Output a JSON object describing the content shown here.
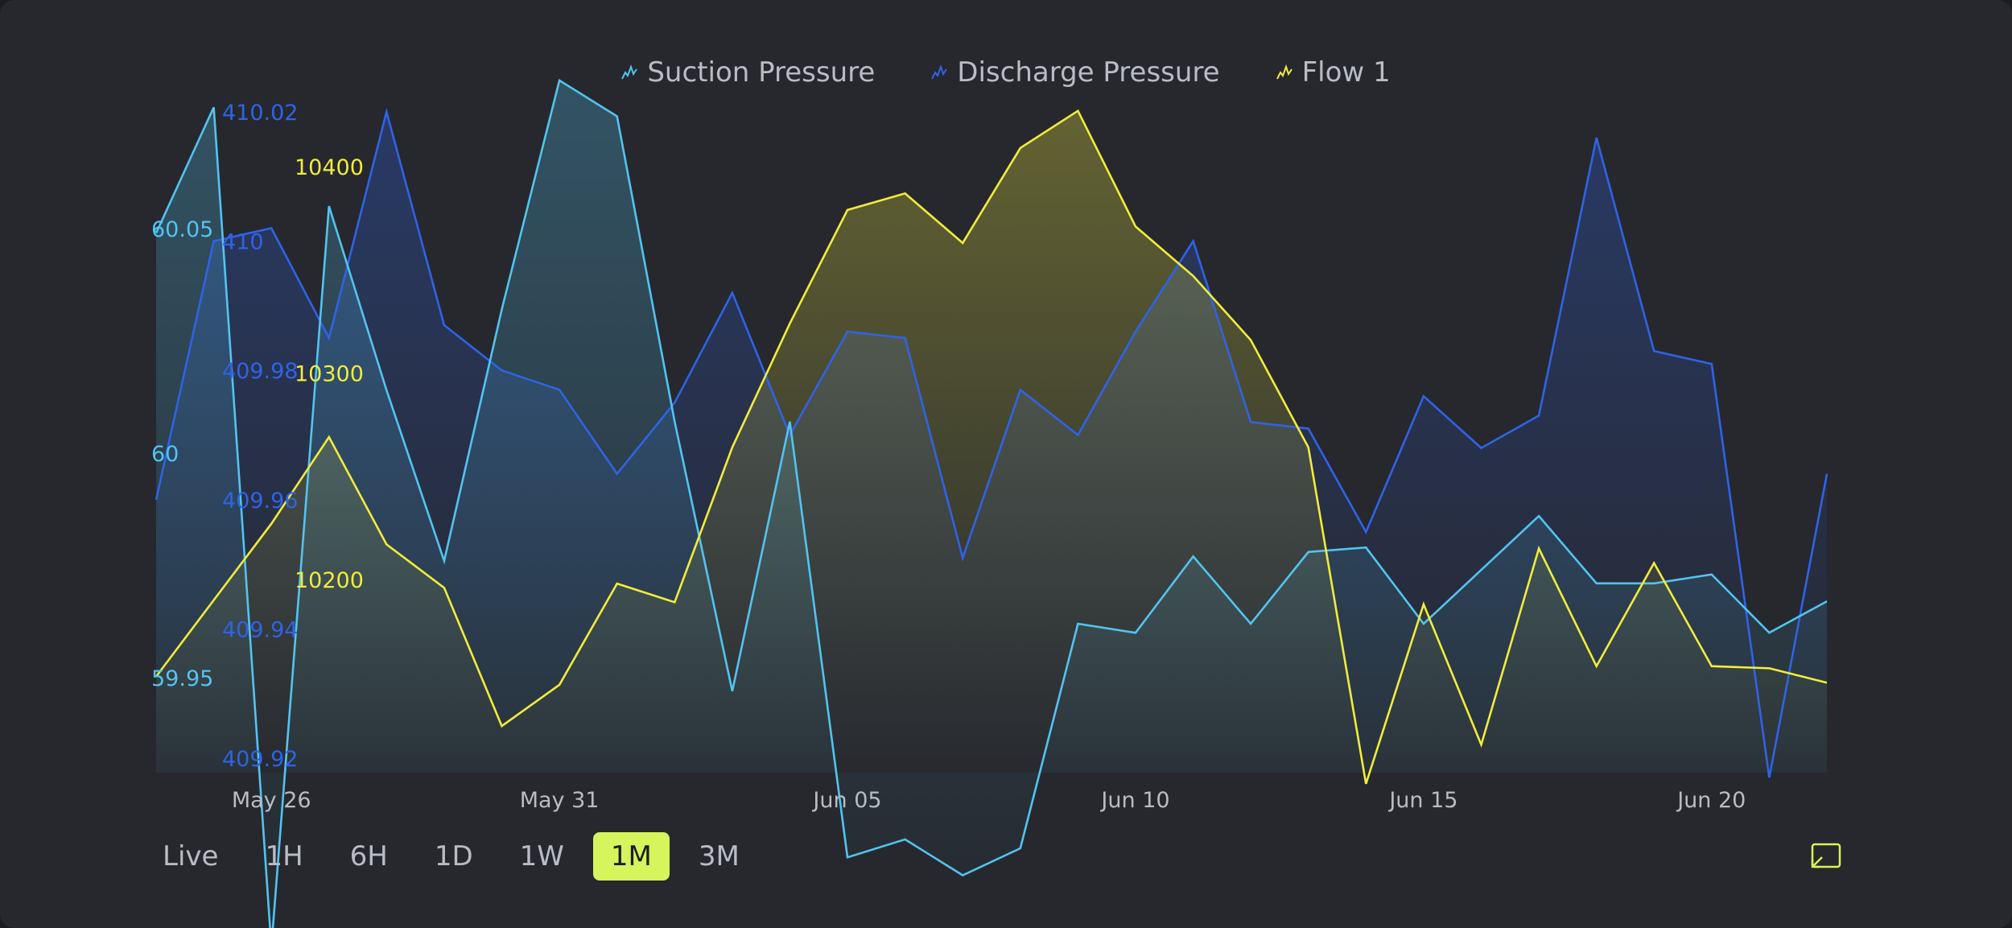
{
  "legend": [
    {
      "name": "Suction Pressure",
      "color": "#52c4f0"
    },
    {
      "name": "Discharge Pressure",
      "color": "#2f63e6"
    },
    {
      "name": "Flow 1",
      "color": "#f2ec3c"
    }
  ],
  "ranges": [
    "Live",
    "1H",
    "6H",
    "1D",
    "1W",
    "1M",
    "3M"
  ],
  "active_range": "1M",
  "colors": {
    "background": "#26282e",
    "suction": "#52c4f0",
    "discharge": "#2f63e6",
    "flow": "#f2ec3c",
    "active": "#d6f45b",
    "text": "#b9bcc4"
  },
  "chart_data": {
    "type": "area",
    "x": [
      "2024-05-24",
      "2024-05-25",
      "2024-05-26",
      "2024-05-27",
      "2024-05-28",
      "2024-05-29",
      "2024-05-30",
      "2024-05-31",
      "2024-06-01",
      "2024-06-02",
      "2024-06-03",
      "2024-06-04",
      "2024-06-05",
      "2024-06-06",
      "2024-06-07",
      "2024-06-08",
      "2024-06-09",
      "2024-06-10",
      "2024-06-11",
      "2024-06-12",
      "2024-06-13",
      "2024-06-14",
      "2024-06-15",
      "2024-06-16",
      "2024-06-17",
      "2024-06-18",
      "2024-06-19",
      "2024-06-20",
      "2024-06-21",
      "2024-06-22"
    ],
    "xticks": [
      "May 26",
      "May 31",
      "Jun 05",
      "Jun 10",
      "Jun 15",
      "Jun 20"
    ],
    "xtick_dates": [
      "2024-05-26",
      "2024-05-31",
      "2024-06-05",
      "2024-06-10",
      "2024-06-15",
      "2024-06-20"
    ],
    "grid": false,
    "legend_position": "top-center",
    "series": [
      {
        "name": "Suction Pressure",
        "axis_ticks": [
          "60.05",
          "60",
          "59.95"
        ],
        "axis_tick_values": [
          60.05,
          60,
          59.95
        ],
        "values": [
          60.049,
          60.077,
          59.89,
          60.055,
          60.014,
          59.976,
          60.032,
          60.083,
          60.075,
          60.007,
          59.947,
          60.007,
          59.91,
          59.914,
          59.906,
          59.912,
          59.962,
          59.96,
          59.977,
          59.962,
          59.978,
          59.979,
          59.962,
          59.974,
          59.986,
          59.971,
          59.971,
          59.973,
          59.96,
          59.967
        ]
      },
      {
        "name": "Discharge Pressure",
        "axis_ticks": [
          "410.02",
          "410",
          "409.98",
          "409.96",
          "409.94",
          "409.92"
        ],
        "axis_tick_values": [
          410.02,
          410,
          409.98,
          409.96,
          409.94,
          409.92
        ],
        "values": [
          409.96,
          410,
          410.002,
          409.985,
          410.02,
          409.987,
          409.98,
          409.977,
          409.964,
          409.975,
          409.992,
          409.97,
          409.986,
          409.985,
          409.951,
          409.977,
          409.97,
          409.986,
          410.0,
          409.972,
          409.971,
          409.955,
          409.976,
          409.968,
          409.973,
          410.016,
          409.983,
          409.981,
          409.917,
          409.964
        ]
      },
      {
        "name": "Flow 1",
        "axis_ticks": [
          "10400",
          "10300",
          "10200"
        ],
        "axis_tick_values": [
          10400,
          10300,
          10200
        ],
        "values": [
          10153,
          10190,
          10227,
          10269,
          10217,
          10196,
          10129,
          10149,
          10198,
          10189,
          10264,
          10324,
          10379,
          10387,
          10363,
          10409,
          10427,
          10371,
          10347,
          10316,
          10264,
          10101,
          10188,
          10120,
          10215,
          10158,
          10208,
          10158,
          10157,
          10150
        ]
      }
    ]
  }
}
